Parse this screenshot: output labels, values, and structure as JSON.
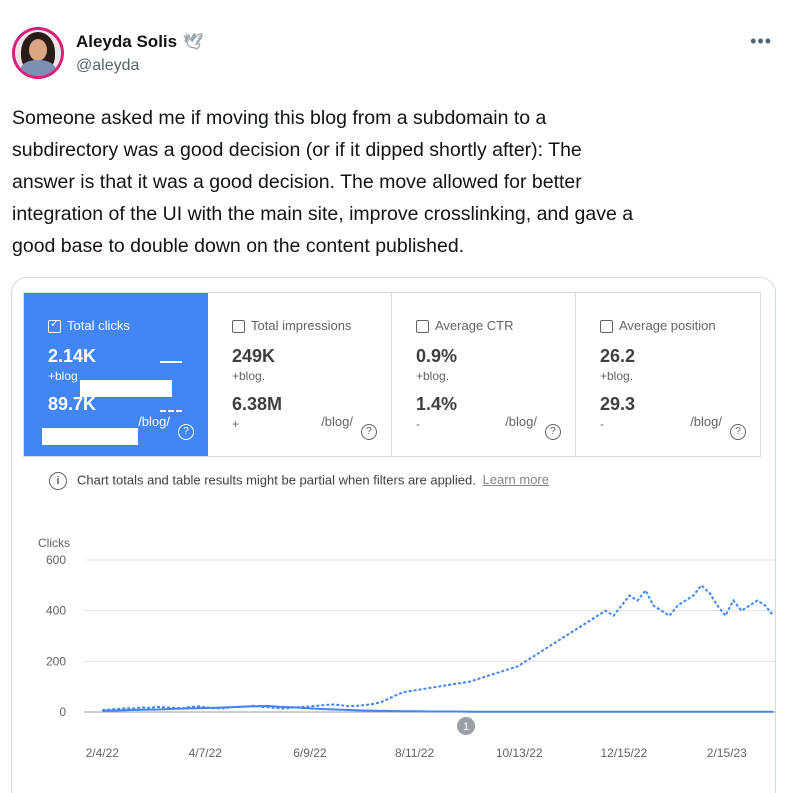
{
  "author": {
    "name": "Aleyda Solis",
    "emoji": "🕊",
    "handle": "@aleyda",
    "more_label": "•••"
  },
  "tweet": {
    "text": "Someone asked me if moving this blog from a subdomain to a\nsubdirectory was a good decision (or if it dipped shortly after): The\nanswer is that it was a good decision. The move allowed for better\nintegration of the UI with the main site, improve crosslinking, and gave a\ngood base to double down on the content published."
  },
  "metrics": [
    {
      "title": "Total clicks",
      "val1": "2.14K",
      "sub1": "+blog",
      "val2": "89.7K",
      "sub2": "",
      "sub2r": "/blog/",
      "active": true
    },
    {
      "title": "Total impressions",
      "val1": "249K",
      "sub1": "+blog.",
      "val2": "6.38M",
      "sub2": "+",
      "sub2r": "/blog/",
      "active": false
    },
    {
      "title": "Average CTR",
      "val1": "0.9%",
      "sub1": "+blog.",
      "val2": "1.4%",
      "sub2": "-",
      "sub2r": "/blog/",
      "active": false
    },
    {
      "title": "Average position",
      "val1": "26.2",
      "sub1": "+blog.",
      "val2": "29.3",
      "sub2": "-",
      "sub2r": "/blog/",
      "active": false
    }
  ],
  "help_glyph": "?",
  "notice": {
    "icon": "i",
    "text": "Chart totals and table results might be partial when filters are applied.",
    "link": "Learn more"
  },
  "colors": {
    "accent": "#4285f4",
    "line": "#4285f4",
    "grid": "#e0e0e0"
  },
  "chart_data": {
    "type": "line",
    "ylabel": "Clicks",
    "ylim": [
      0,
      600
    ],
    "yticks": [
      0,
      200,
      400,
      600
    ],
    "x_tick_labels": [
      "2/4/22",
      "4/7/22",
      "6/9/22",
      "8/11/22",
      "10/13/22",
      "12/15/22",
      "2/15/23"
    ],
    "annotation": "1",
    "annotation_date": "2022-09-11",
    "series": [
      {
        "style": "dashed",
        "x_start": "2022-02-04",
        "x_end": "2023-03-15",
        "values": [
          8,
          10,
          12,
          15,
          14,
          18,
          16,
          20,
          18,
          16,
          15,
          20,
          22,
          18,
          15,
          14,
          18,
          20,
          22,
          25,
          20,
          18,
          15,
          14,
          18,
          20,
          22,
          25,
          28,
          30,
          26,
          22,
          25,
          28,
          32,
          40,
          55,
          70,
          80,
          85,
          90,
          95,
          100,
          105,
          110,
          115,
          120,
          130,
          140,
          150,
          160,
          170,
          180,
          200,
          220,
          240,
          260,
          280,
          300,
          320,
          340,
          360,
          380,
          400,
          380,
          420,
          460,
          440,
          480,
          420,
          400,
          380,
          420,
          440,
          460,
          500,
          470,
          420,
          380,
          440,
          400,
          420,
          440,
          420,
          380
        ]
      },
      {
        "style": "solid",
        "x_start": "2022-02-04",
        "x_end": "2023-03-15",
        "values": [
          5,
          6,
          8,
          9,
          10,
          12,
          14,
          15,
          16,
          18,
          20,
          22,
          24,
          20,
          18,
          15,
          12,
          10,
          8,
          6,
          5,
          4,
          3,
          3,
          2,
          2,
          2,
          1,
          1,
          1,
          1,
          1,
          1,
          1,
          1,
          1,
          1,
          1,
          1,
          1,
          1,
          1,
          1,
          1,
          1,
          1,
          1,
          1,
          1,
          1
        ]
      }
    ]
  }
}
